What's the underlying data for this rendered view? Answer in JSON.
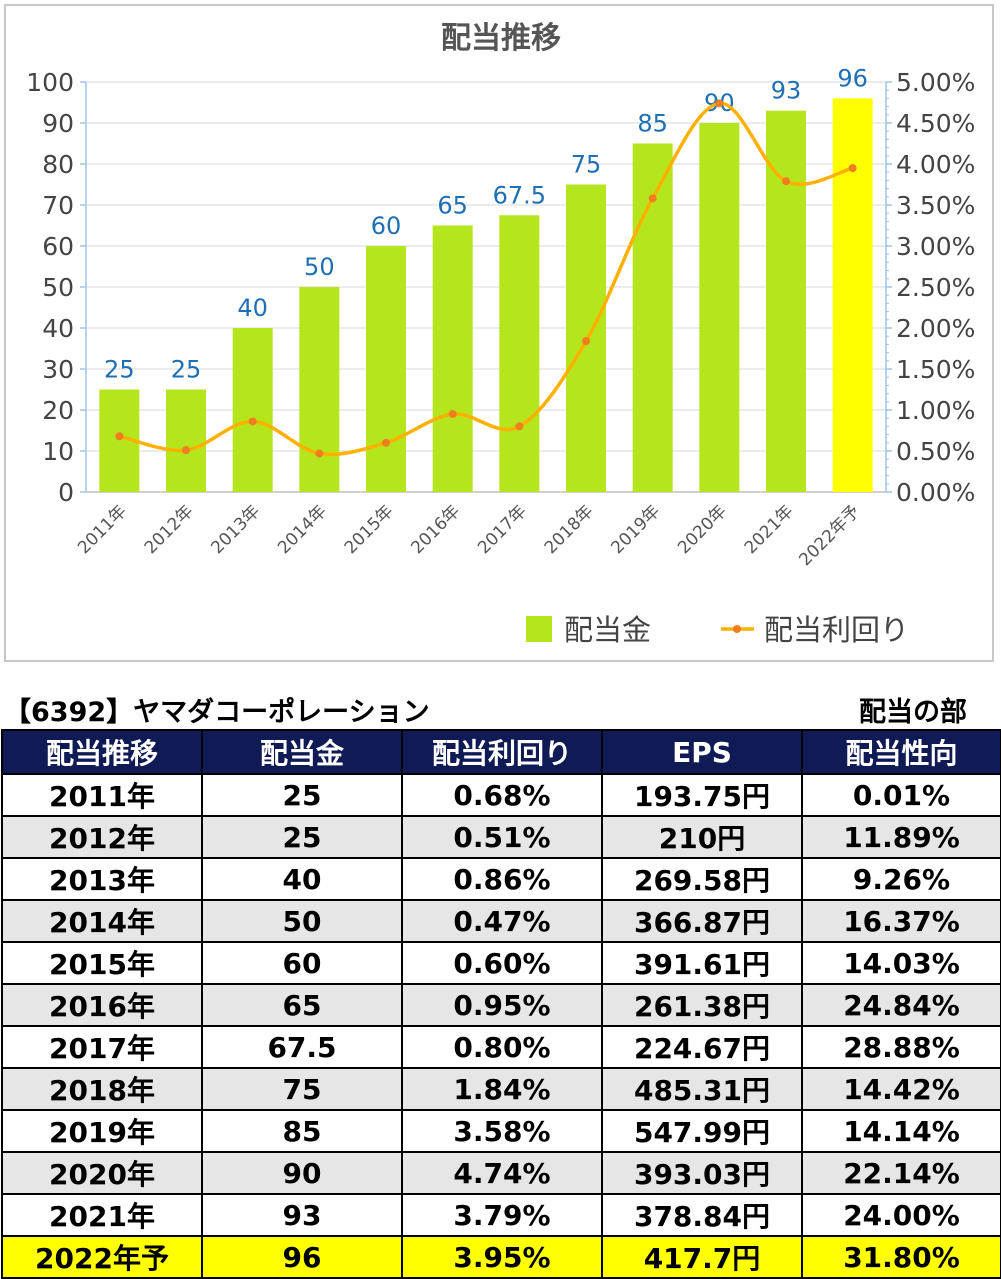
{
  "chart_data": {
    "type": "bar",
    "title": "配当推移",
    "categories": [
      "2011年",
      "2012年",
      "2013年",
      "2014年",
      "2015年",
      "2016年",
      "2017年",
      "2018年",
      "2019年",
      "2020年",
      "2021年",
      "2022年予"
    ],
    "series": [
      {
        "name": "配当金",
        "kind": "bar",
        "axis": "left",
        "values": [
          25,
          25,
          40,
          50,
          60,
          65,
          67.5,
          75,
          85,
          90,
          93,
          96
        ],
        "labels": [
          "25",
          "25",
          "40",
          "50",
          "60",
          "65",
          "67.5",
          "75",
          "85",
          "90",
          "93",
          "96"
        ],
        "color": "#b5e61d",
        "highlight_color": "#ffff00",
        "highlight_index": 11
      },
      {
        "name": "配当利回り",
        "kind": "line",
        "axis": "right",
        "values": [
          0.0068,
          0.0051,
          0.0086,
          0.0047,
          0.006,
          0.0095,
          0.008,
          0.0184,
          0.0358,
          0.0474,
          0.0379,
          0.0395
        ],
        "color": "#ffb000",
        "marker_color": "#f07d1e"
      }
    ],
    "y_left": {
      "ylim": [
        0,
        100
      ],
      "ticks": [
        "0",
        "10",
        "20",
        "30",
        "40",
        "50",
        "60",
        "70",
        "80",
        "90",
        "100"
      ]
    },
    "y_right": {
      "ylim": [
        0,
        0.05
      ],
      "ticks": [
        "0.00%",
        "0.50%",
        "1.00%",
        "1.50%",
        "2.00%",
        "2.50%",
        "3.00%",
        "3.50%",
        "4.00%",
        "4.50%",
        "5.00%"
      ]
    },
    "grid": true,
    "legend_placement": "bottom-right",
    "label_color": "#1f6fb4",
    "axis_color": "#9dc3e6"
  },
  "table_header": {
    "company": "【6392】ヤマダコーポレーション",
    "section": "配当の部"
  },
  "table": {
    "columns": [
      "配当推移",
      "配当金",
      "配当利回り",
      "EPS",
      "配当性向"
    ],
    "rows": [
      [
        "2011年",
        "25",
        "0.68%",
        "193.75円",
        "0.01%"
      ],
      [
        "2012年",
        "25",
        "0.51%",
        "210円",
        "11.89%"
      ],
      [
        "2013年",
        "40",
        "0.86%",
        "269.58円",
        "9.26%"
      ],
      [
        "2014年",
        "50",
        "0.47%",
        "366.87円",
        "16.37%"
      ],
      [
        "2015年",
        "60",
        "0.60%",
        "391.61円",
        "14.03%"
      ],
      [
        "2016年",
        "65",
        "0.95%",
        "261.38円",
        "24.84%"
      ],
      [
        "2017年",
        "67.5",
        "0.80%",
        "224.67円",
        "28.88%"
      ],
      [
        "2018年",
        "75",
        "1.84%",
        "485.31円",
        "14.42%"
      ],
      [
        "2019年",
        "85",
        "3.58%",
        "547.99円",
        "14.14%"
      ],
      [
        "2020年",
        "90",
        "4.74%",
        "393.03円",
        "22.14%"
      ],
      [
        "2021年",
        "93",
        "3.79%",
        "378.84円",
        "24.00%"
      ],
      [
        "2022年予",
        "96",
        "3.95%",
        "417.7円",
        "31.80%"
      ]
    ],
    "header_bg": "#101a55",
    "forecast_bg": "#ffff00"
  }
}
